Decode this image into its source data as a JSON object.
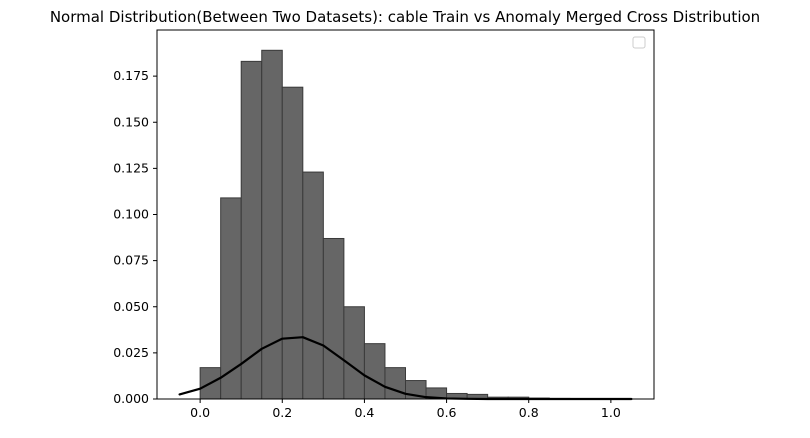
{
  "chart_data": {
    "type": "histogram",
    "title": "Normal Distribution(Between Two Datasets): cable Train vs Anomaly Merged Cross Distribution",
    "xlabel": "",
    "ylabel": "",
    "xlim": [
      -0.105,
      1.105
    ],
    "ylim": [
      0,
      0.2
    ],
    "x_ticks": [
      "0.0",
      "0.2",
      "0.4",
      "0.6",
      "0.8",
      "1.0"
    ],
    "x_tick_values": [
      0.0,
      0.2,
      0.4,
      0.6,
      0.8,
      1.0
    ],
    "y_ticks": [
      "0.000",
      "0.025",
      "0.050",
      "0.075",
      "0.100",
      "0.125",
      "0.150",
      "0.175"
    ],
    "y_tick_values": [
      0.0,
      0.025,
      0.05,
      0.075,
      0.1,
      0.125,
      0.15,
      0.175
    ],
    "grid": false,
    "legend": "top-right (empty)",
    "series": [
      {
        "kind": "histogram",
        "bin_edges": [
          0.0,
          0.05,
          0.1,
          0.15,
          0.2,
          0.25,
          0.3,
          0.35,
          0.4,
          0.45,
          0.5,
          0.55,
          0.6,
          0.65,
          0.7,
          0.75,
          0.8,
          0.85,
          0.9,
          0.95,
          1.0,
          1.05
        ],
        "values": [
          0.017,
          0.109,
          0.183,
          0.189,
          0.169,
          0.123,
          0.087,
          0.05,
          0.03,
          0.017,
          0.01,
          0.006,
          0.003,
          0.0025,
          0.001,
          0.001,
          0.0005,
          0.0003,
          0.0002,
          0.0001,
          0.0001
        ],
        "color": "#666666",
        "edge_color": "#3a3a3a"
      },
      {
        "kind": "line",
        "x": [
          -0.05,
          0.0,
          0.05,
          0.1,
          0.15,
          0.2,
          0.25,
          0.3,
          0.35,
          0.4,
          0.45,
          0.5,
          0.55,
          0.6,
          0.65,
          0.7,
          0.75,
          0.8,
          0.85,
          0.9,
          0.95,
          1.0,
          1.05
        ],
        "values": [
          0.0025,
          0.0056,
          0.0115,
          0.019,
          0.0272,
          0.0327,
          0.0335,
          0.029,
          0.021,
          0.0128,
          0.0066,
          0.0028,
          0.001,
          0.0003,
          0.0001,
          0.0,
          0.0,
          0.0,
          0.0,
          0.0,
          0.0,
          0.0,
          0.0
        ],
        "color": "#000000"
      }
    ]
  }
}
